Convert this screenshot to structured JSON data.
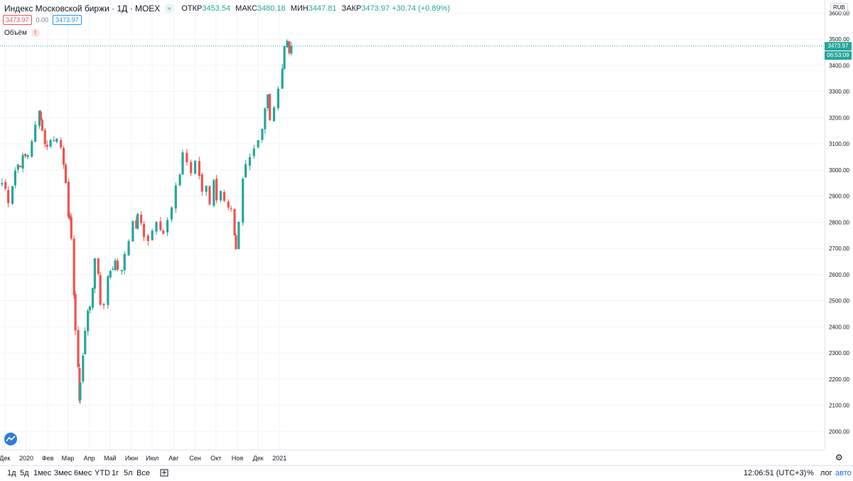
{
  "header": {
    "title": "Индекс Московской биржи · 1Д · MOEX",
    "ohlc": [
      {
        "label": "ОТКР",
        "value": "3453.54"
      },
      {
        "label": "МАКС",
        "value": "3480.18"
      },
      {
        "label": "МИН",
        "value": "3447.81"
      },
      {
        "label": "ЗАКР",
        "value": "3473.97"
      }
    ],
    "change": "+30.74 (+0.89%)",
    "bid": "3473.97",
    "spread": "0.00",
    "ask": "3473.97",
    "volume_label": "Объём",
    "volume_warning": "!",
    "currency": "RUB"
  },
  "price_tags": {
    "last": "3473.97",
    "countdown": "06:53:09"
  },
  "bottom_bar": {
    "ranges": [
      "1д",
      "5д",
      "1мес",
      "3мес",
      "6мес",
      "YTD",
      "1г",
      "5л",
      "Все"
    ],
    "time": "12:06:51 (UTC+3)",
    "percent": "%",
    "log": "лог",
    "auto": "авто"
  },
  "colors": {
    "up": "#26a69a",
    "down": "#ef5350",
    "grid": "#f0f3fa",
    "axis_text": "#131722"
  },
  "chart_data": {
    "type": "candlestick",
    "y_ticks": [
      3600,
      3500,
      3400,
      3300,
      3200,
      3100,
      3000,
      2900,
      2800,
      2700,
      2600,
      2500,
      2400,
      2300,
      2200,
      2100,
      2000
    ],
    "ylim": [
      1930,
      3650
    ],
    "x_labels": [
      "Дек",
      "2020",
      "Фев",
      "Мар",
      "Апр",
      "Май",
      "Июн",
      "Июл",
      "Авг",
      "Сен",
      "Окт",
      "Ноя",
      "Дек",
      "2021"
    ],
    "close_series": [
      {
        "date": "2019-11-27",
        "close": 2950
      },
      {
        "date": "2019-12-02",
        "close": 2925
      },
      {
        "date": "2019-12-06",
        "close": 2890
      },
      {
        "date": "2019-12-12",
        "close": 2950
      },
      {
        "date": "2019-12-16",
        "close": 3000
      },
      {
        "date": "2019-12-20",
        "close": 3020
      },
      {
        "date": "2019-12-27",
        "close": 3040
      },
      {
        "date": "2020-01-03",
        "close": 3060
      },
      {
        "date": "2020-01-09",
        "close": 3120
      },
      {
        "date": "2020-01-14",
        "close": 3160
      },
      {
        "date": "2020-01-20",
        "close": 3220
      },
      {
        "date": "2020-01-22",
        "close": 3210
      },
      {
        "date": "2020-01-24",
        "close": 3150
      },
      {
        "date": "2020-01-28",
        "close": 3110
      },
      {
        "date": "2020-01-31",
        "close": 3080
      },
      {
        "date": "2020-02-05",
        "close": 3130
      },
      {
        "date": "2020-02-10",
        "close": 3110
      },
      {
        "date": "2020-02-14",
        "close": 3120
      },
      {
        "date": "2020-02-20",
        "close": 3100
      },
      {
        "date": "2020-02-24",
        "close": 3040
      },
      {
        "date": "2020-02-27",
        "close": 2930
      },
      {
        "date": "2020-03-02",
        "close": 2800
      },
      {
        "date": "2020-03-04",
        "close": 2830
      },
      {
        "date": "2020-03-06",
        "close": 2740
      },
      {
        "date": "2020-03-10",
        "close": 2500
      },
      {
        "date": "2020-03-12",
        "close": 2400
      },
      {
        "date": "2020-03-16",
        "close": 2250
      },
      {
        "date": "2020-03-18",
        "close": 2115
      },
      {
        "date": "2020-03-19",
        "close": 2180
      },
      {
        "date": "2020-03-23",
        "close": 2300
      },
      {
        "date": "2020-03-26",
        "close": 2400
      },
      {
        "date": "2020-03-30",
        "close": 2440
      },
      {
        "date": "2020-04-02",
        "close": 2480
      },
      {
        "date": "2020-04-06",
        "close": 2560
      },
      {
        "date": "2020-04-09",
        "close": 2660
      },
      {
        "date": "2020-04-14",
        "close": 2610
      },
      {
        "date": "2020-04-17",
        "close": 2500
      },
      {
        "date": "2020-04-22",
        "close": 2470
      },
      {
        "date": "2020-04-28",
        "close": 2600
      },
      {
        "date": "2020-05-05",
        "close": 2640
      },
      {
        "date": "2020-05-12",
        "close": 2630
      },
      {
        "date": "2020-05-18",
        "close": 2600
      },
      {
        "date": "2020-05-22",
        "close": 2680
      },
      {
        "date": "2020-05-28",
        "close": 2740
      },
      {
        "date": "2020-06-03",
        "close": 2800
      },
      {
        "date": "2020-06-08",
        "close": 2780
      },
      {
        "date": "2020-06-10",
        "close": 2820
      },
      {
        "date": "2020-06-15",
        "close": 2790
      },
      {
        "date": "2020-06-19",
        "close": 2760
      },
      {
        "date": "2020-06-25",
        "close": 2740
      },
      {
        "date": "2020-07-01",
        "close": 2770
      },
      {
        "date": "2020-07-07",
        "close": 2820
      },
      {
        "date": "2020-07-13",
        "close": 2790
      },
      {
        "date": "2020-07-17",
        "close": 2760
      },
      {
        "date": "2020-07-23",
        "close": 2800
      },
      {
        "date": "2020-07-29",
        "close": 2850
      },
      {
        "date": "2020-08-04",
        "close": 2920
      },
      {
        "date": "2020-08-10",
        "close": 2990
      },
      {
        "date": "2020-08-14",
        "close": 3070
      },
      {
        "date": "2020-08-20",
        "close": 3030
      },
      {
        "date": "2020-08-26",
        "close": 2990
      },
      {
        "date": "2020-09-01",
        "close": 3020
      },
      {
        "date": "2020-09-07",
        "close": 2980
      },
      {
        "date": "2020-09-11",
        "close": 2920
      },
      {
        "date": "2020-09-17",
        "close": 2950
      },
      {
        "date": "2020-09-22",
        "close": 2880
      },
      {
        "date": "2020-09-28",
        "close": 2950
      },
      {
        "date": "2020-10-02",
        "close": 2900
      },
      {
        "date": "2020-10-08",
        "close": 2930
      },
      {
        "date": "2020-10-13",
        "close": 2870
      },
      {
        "date": "2020-10-19",
        "close": 2840
      },
      {
        "date": "2020-10-23",
        "close": 2830
      },
      {
        "date": "2020-10-28",
        "close": 2730
      },
      {
        "date": "2020-10-30",
        "close": 2680
      },
      {
        "date": "2020-11-03",
        "close": 2790
      },
      {
        "date": "2020-11-09",
        "close": 2960
      },
      {
        "date": "2020-11-13",
        "close": 3020
      },
      {
        "date": "2020-11-19",
        "close": 3070
      },
      {
        "date": "2020-11-25",
        "close": 3090
      },
      {
        "date": "2020-12-01",
        "close": 3120
      },
      {
        "date": "2020-12-07",
        "close": 3170
      },
      {
        "date": "2020-12-11",
        "close": 3240
      },
      {
        "date": "2020-12-15",
        "close": 3280
      },
      {
        "date": "2020-12-18",
        "close": 3180
      },
      {
        "date": "2020-12-24",
        "close": 3250
      },
      {
        "date": "2020-12-30",
        "close": 3290
      },
      {
        "date": "2021-01-05",
        "close": 3410
      },
      {
        "date": "2021-01-08",
        "close": 3480
      },
      {
        "date": "2021-01-12",
        "close": 3490
      },
      {
        "date": "2021-01-15",
        "close": 3450
      },
      {
        "date": "2021-01-18",
        "close": 3474
      }
    ]
  }
}
